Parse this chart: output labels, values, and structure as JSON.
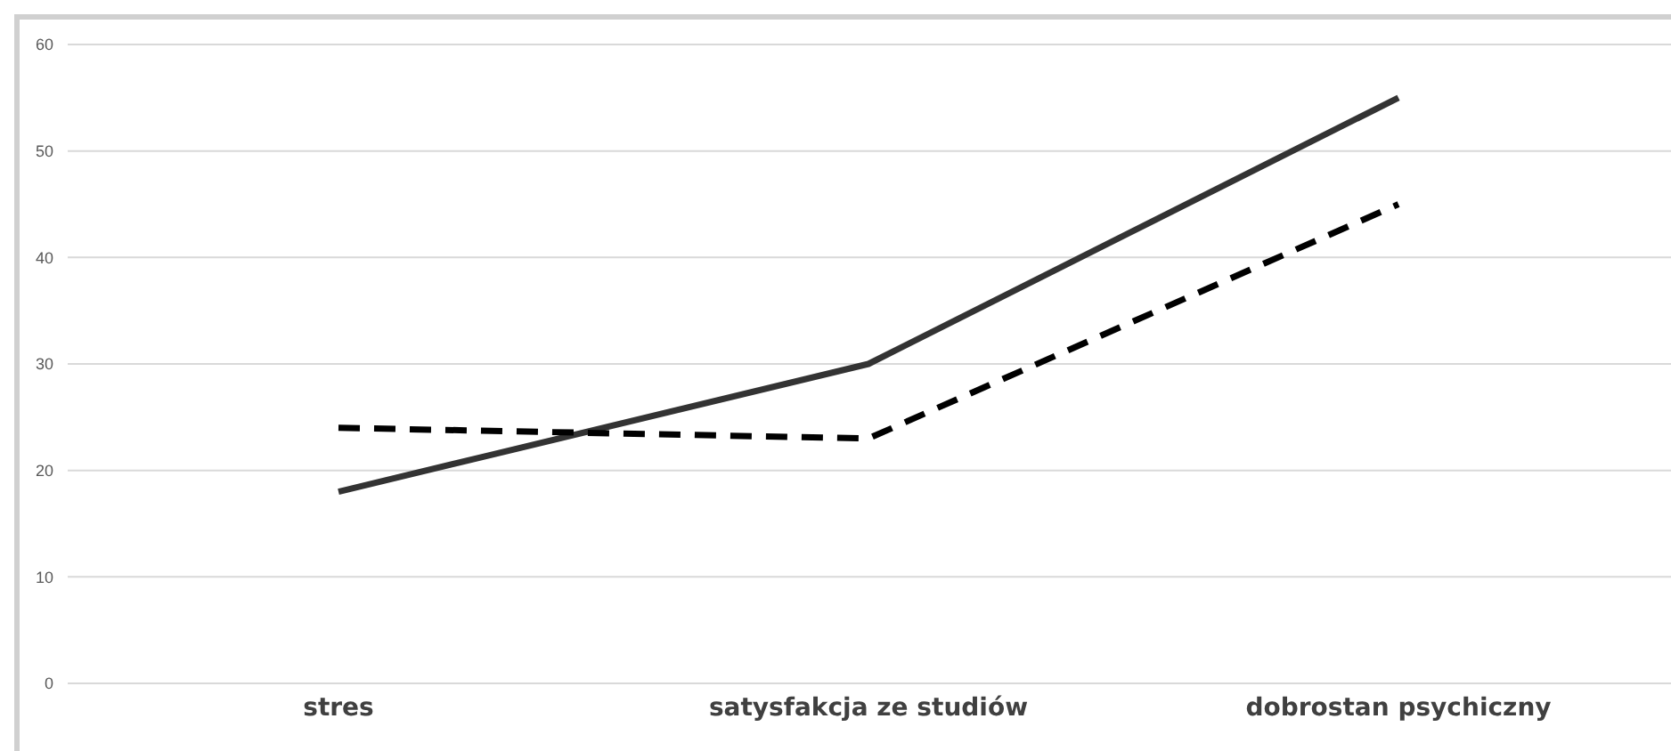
{
  "chart_data": {
    "type": "line",
    "categories": [
      "stres",
      "satysfakcja ze studiów",
      "dobrostan psychiczny"
    ],
    "series": [
      {
        "color": "#333333",
        "line_style": "solid",
        "values": [
          18,
          30,
          55
        ]
      },
      {
        "color": "#000000",
        "line_style": "dashed",
        "values": [
          24,
          23,
          45
        ]
      }
    ],
    "ylim": [
      0,
      60
    ],
    "yticks": [
      0,
      10,
      20,
      30,
      40,
      50,
      60
    ],
    "grid": "y",
    "legend": false,
    "marker": "none"
  }
}
